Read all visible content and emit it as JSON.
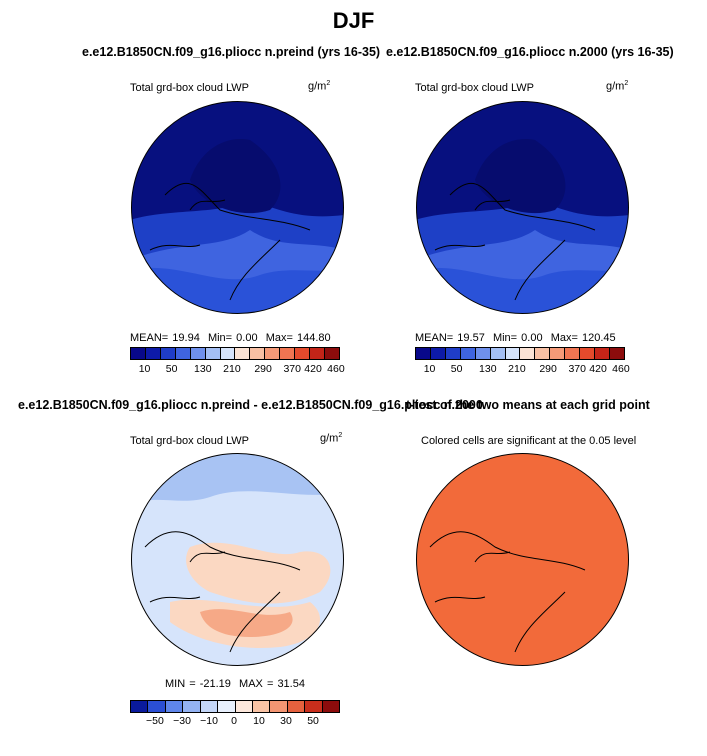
{
  "figure": {
    "title": "DJF",
    "case_preind": "e.e12.B1850CN.f09_g16.pliocc n.preind (yrs 16-35)",
    "case_2000": "e.e12.B1850CN.f09_g16.pliocc n.2000 (yrs 16-35)",
    "diff_title": "e.e12.B1850CN.f09_g16.pliocc n.preind - e.e12.B1850CN.f09_g16.pliocc n.2000",
    "ttest_title": "t-test of the two means at each grid point"
  },
  "panel_preind": {
    "variable": "Total grd-box cloud LWP",
    "units": "g/m",
    "units_exp": "2",
    "mean_label": "MEAN=",
    "mean": "19.94",
    "min_label": "Min=",
    "min": "0.00",
    "max_label": "Max=",
    "max": "144.80"
  },
  "panel_2000": {
    "variable": "Total grd-box cloud LWP",
    "units": "g/m",
    "units_exp": "2",
    "mean_label": "MEAN=",
    "mean": "19.57",
    "min_label": "Min=",
    "min": "0.00",
    "max_label": "Max=",
    "max": "120.45"
  },
  "panel_diff": {
    "variable": "Total grd-box cloud LWP",
    "units": "g/m",
    "units_exp": "2",
    "min_label": "MIN =",
    "min": "-21.19",
    "max_label": "MAX =",
    "max": "31.54"
  },
  "panel_ttest": {
    "note": "Colored cells are significant at the 0.05 level"
  },
  "colorbar_abs": {
    "colors": [
      "#08088a",
      "#0d1aa8",
      "#1f3dc8",
      "#3f64e0",
      "#6f90ec",
      "#a4bff4",
      "#d6e4fb",
      "#fbe3d5",
      "#f8c0a4",
      "#f59a78",
      "#f07552",
      "#e44a2c",
      "#c42418",
      "#8c0c0c"
    ],
    "tick_labels": [
      "10",
      "50",
      "130",
      "210",
      "290",
      "370",
      "420",
      "460"
    ]
  },
  "colorbar_diff": {
    "colors": [
      "#0a1a9c",
      "#2b4fd4",
      "#5f86ea",
      "#93b2f2",
      "#c3d6f8",
      "#e8f0fd",
      "#fde8dc",
      "#f9c3a5",
      "#f39572",
      "#e5613e",
      "#c82e1c",
      "#8c0c0c"
    ],
    "tick_labels": [
      "−50",
      "−30",
      "−10",
      "0",
      "10",
      "30",
      "50"
    ]
  },
  "colors": {
    "map_dark": "#07107f",
    "map_mid": "#1e40c6",
    "map_light": "#3f64e0",
    "diff_bg": "#d6e4fb",
    "diff_warm": "#fbd8c2",
    "diff_warmer": "#f6a987",
    "diff_cool": "#a8c3f3",
    "ttest_fill": "#f26a3a"
  }
}
